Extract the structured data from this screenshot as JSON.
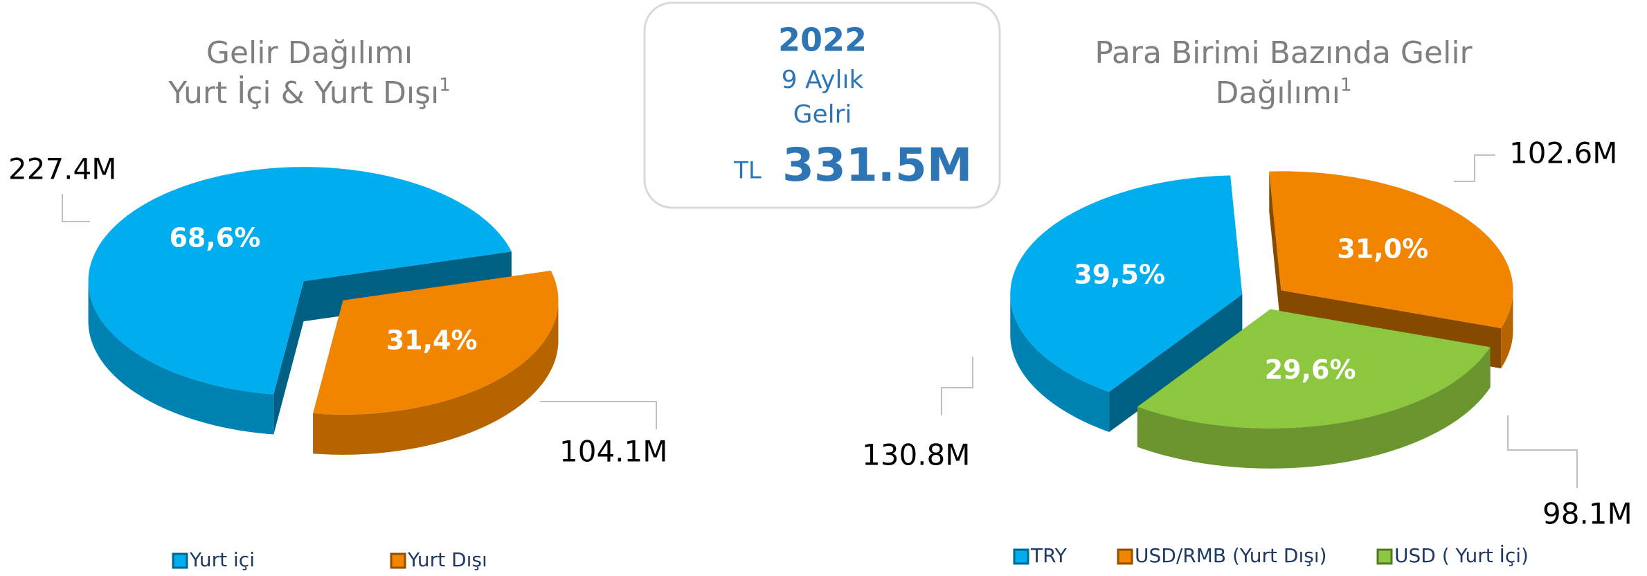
{
  "chart_data": [
    {
      "type": "pie3d",
      "title_lines": [
        "Gelir Dağılımı",
        "Yurt İçi & Yurt Dışı"
      ],
      "title_note": "1",
      "categories": [
        "Yurt içi",
        "Yurt Dışı"
      ],
      "values": [
        68.6,
        31.4
      ],
      "value_labels": [
        "68,6%",
        "31,4%"
      ],
      "amount_labels": [
        "227.4M",
        "104.1M"
      ],
      "colors": [
        "#00aeef",
        "#f28500"
      ]
    },
    {
      "type": "pie3d",
      "title_lines": [
        "Para Birimi Bazında Gelir",
        "Dağılımı"
      ],
      "title_note": "1",
      "categories": [
        "TRY",
        "USD/RMB (Yurt Dışı)",
        "USD ( Yurt İçi)"
      ],
      "values": [
        39.5,
        31.0,
        29.6
      ],
      "value_labels": [
        "39,5%",
        "31,0%",
        "29,6%"
      ],
      "amount_labels": [
        "130.8M",
        "102.6M",
        "98.1M"
      ],
      "colors": [
        "#00aeef",
        "#f28500",
        "#8dc63f"
      ]
    }
  ],
  "summary": {
    "year": "2022",
    "line1": "9 Aylık",
    "line2": "Gelri",
    "currency": "TL",
    "total": "331.5M"
  }
}
